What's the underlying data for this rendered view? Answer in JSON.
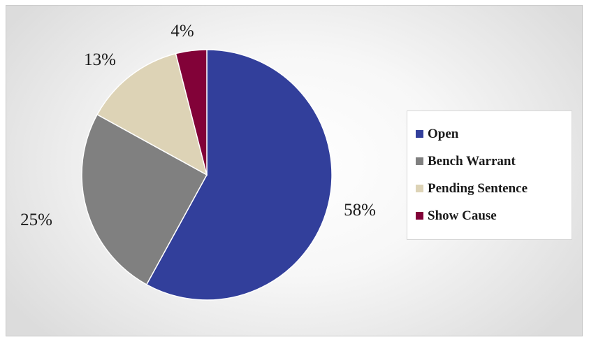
{
  "chart_data": {
    "type": "pie",
    "slices": [
      {
        "name": "Open",
        "value": 58,
        "label": "58%",
        "color": "#323f9b"
      },
      {
        "name": "Bench Warrant",
        "value": 25,
        "label": "25%",
        "color": "#808080"
      },
      {
        "name": "Pending Sentence",
        "value": 13,
        "label": "13%",
        "color": "#ddd3b6"
      },
      {
        "name": "Show Cause",
        "value": 4,
        "label": "4%",
        "color": "#820238"
      }
    ],
    "legend": {
      "placement": "right",
      "entries": [
        "Open",
        "Bench Warrant",
        "Pending Sentence",
        "Show Cause"
      ]
    },
    "start_angle": "12 o'clock",
    "direction": "clockwise"
  }
}
